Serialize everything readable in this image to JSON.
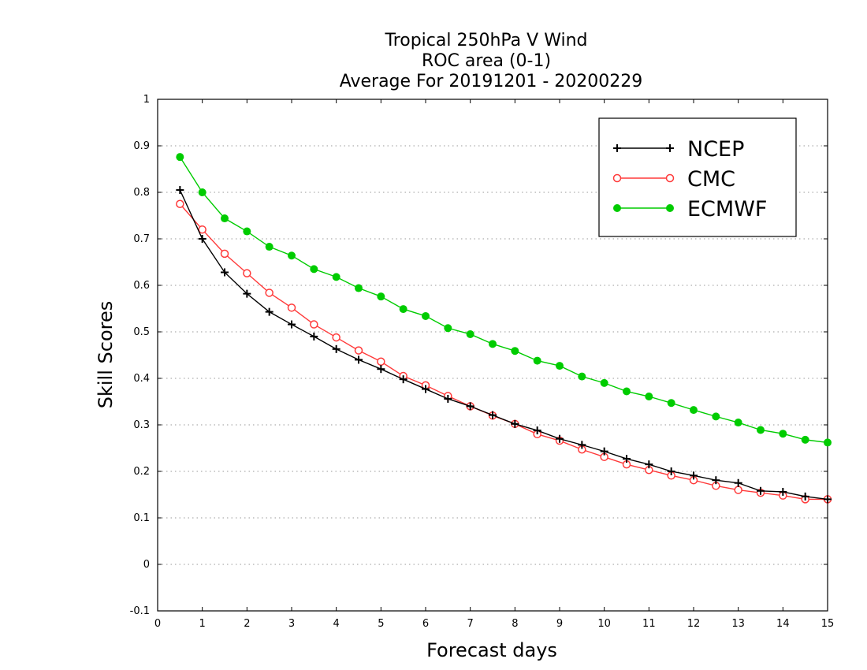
{
  "chart_data": {
    "type": "line",
    "title": [
      "Tropical 250hPa V Wind",
      "ROC area (0-1)",
      "Average For 20191201 - 20200229"
    ],
    "xlabel": "Forecast days",
    "ylabel": "Skill Scores",
    "xlim": [
      0,
      15
    ],
    "ylim": [
      -0.1,
      1
    ],
    "xticks": [
      "0",
      "1",
      "2",
      "3",
      "4",
      "5",
      "6",
      "7",
      "8",
      "9",
      "10",
      "11",
      "12",
      "13",
      "14",
      "15"
    ],
    "yticks": [
      "-0.1",
      "0",
      "0.1",
      "0.2",
      "0.3",
      "0.4",
      "0.5",
      "0.6",
      "0.7",
      "0.8",
      "0.9",
      "1"
    ],
    "grid": "horizontal dotted",
    "legend_position": "top-right",
    "x": [
      0.5,
      1,
      1.5,
      2,
      2.5,
      3,
      3.5,
      4,
      4.5,
      5,
      5.5,
      6,
      6.5,
      7,
      7.5,
      8,
      8.5,
      9,
      9.5,
      10,
      10.5,
      11,
      11.5,
      12,
      12.5,
      13,
      13.5,
      14,
      14.5,
      15
    ],
    "series": [
      {
        "name": "NCEP",
        "color": "#000000",
        "marker": "plus",
        "values": [
          0.805,
          0.7,
          0.628,
          0.582,
          0.543,
          0.516,
          0.49,
          0.463,
          0.44,
          0.42,
          0.398,
          0.377,
          0.356,
          0.34,
          0.321,
          0.302,
          0.288,
          0.27,
          0.257,
          0.243,
          0.227,
          0.215,
          0.2,
          0.191,
          0.181,
          0.175,
          0.158,
          0.156,
          0.146,
          0.14
        ]
      },
      {
        "name": "CMC",
        "color": "#ff3a3a",
        "marker": "open-circle",
        "values": [
          0.775,
          0.72,
          0.668,
          0.626,
          0.584,
          0.552,
          0.516,
          0.488,
          0.46,
          0.436,
          0.405,
          0.385,
          0.362,
          0.34,
          0.32,
          0.302,
          0.28,
          0.266,
          0.247,
          0.231,
          0.215,
          0.203,
          0.191,
          0.181,
          0.169,
          0.16,
          0.154,
          0.148,
          0.14,
          0.14
        ]
      },
      {
        "name": "ECMWF",
        "color": "#00cc00",
        "marker": "filled-circle",
        "values": [
          0.876,
          0.8,
          0.744,
          0.716,
          0.683,
          0.664,
          0.635,
          0.618,
          0.594,
          0.576,
          0.549,
          0.534,
          0.508,
          0.495,
          0.474,
          0.459,
          0.438,
          0.427,
          0.404,
          0.39,
          0.372,
          0.361,
          0.347,
          0.332,
          0.318,
          0.305,
          0.289,
          0.281,
          0.268,
          0.262
        ]
      }
    ]
  }
}
